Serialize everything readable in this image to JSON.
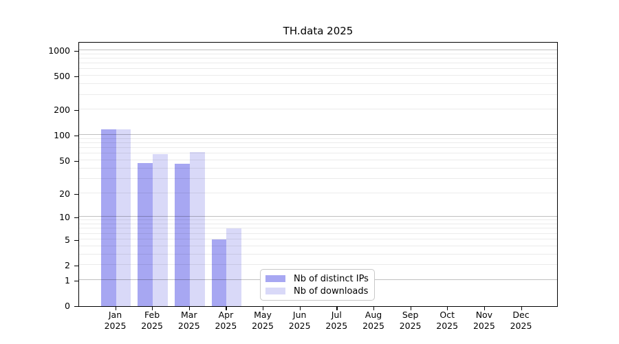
{
  "chart_data": {
    "type": "bar",
    "title": "TH.data 2025",
    "year": "2025",
    "categories": [
      "Jan",
      "Feb",
      "Mar",
      "Apr",
      "May",
      "Jun",
      "Jul",
      "Aug",
      "Sep",
      "Oct",
      "Nov",
      "Dec"
    ],
    "series": [
      {
        "name": "Nb of distinct IPs",
        "color": "#a7a7f2",
        "values": [
          116,
          46,
          45,
          5,
          0,
          0,
          0,
          0,
          0,
          0,
          0,
          0
        ]
      },
      {
        "name": "Nb of downloads",
        "color": "#d9d9f8",
        "values": [
          117,
          59,
          63,
          7,
          0,
          0,
          0,
          0,
          0,
          0,
          0,
          0
        ]
      }
    ],
    "y_scale": "log10(1+v)",
    "ylim": [
      0,
      1000
    ],
    "y_ticks": [
      0,
      1,
      2,
      5,
      10,
      20,
      50,
      100,
      200,
      500,
      1000
    ],
    "grid": {
      "major_values": [
        1,
        10,
        100,
        1000
      ],
      "minor_values": [
        2,
        3,
        4,
        5,
        6,
        7,
        8,
        9,
        20,
        30,
        40,
        50,
        60,
        70,
        80,
        90,
        200,
        300,
        400,
        500,
        600,
        700,
        800,
        900
      ]
    },
    "legend_position": "bottom-center",
    "colors": {
      "axis": "#000000",
      "grid_major": "rgba(0,0,0,0.25)",
      "grid_minor": "rgba(0,0,0,0.08)",
      "legend_border": "#c8c8c8"
    }
  }
}
